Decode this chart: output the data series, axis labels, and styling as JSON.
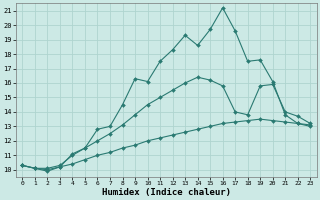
{
  "xlabel": "Humidex (Indice chaleur)",
  "xlim": [
    -0.5,
    23.5
  ],
  "ylim": [
    9.5,
    21.5
  ],
  "xticks": [
    0,
    1,
    2,
    3,
    4,
    5,
    6,
    7,
    8,
    9,
    10,
    11,
    12,
    13,
    14,
    15,
    16,
    17,
    18,
    19,
    20,
    21,
    22,
    23
  ],
  "yticks": [
    10,
    11,
    12,
    13,
    14,
    15,
    16,
    17,
    18,
    19,
    20,
    21
  ],
  "bg_color": "#cce9e5",
  "grid_color": "#afd4cf",
  "line_color": "#2a7a72",
  "line1_x": [
    0,
    1,
    2,
    3,
    4,
    5,
    6,
    7,
    8,
    9,
    10,
    11,
    12,
    13,
    14,
    15,
    16,
    17,
    18,
    19,
    20,
    21,
    22,
    23
  ],
  "line1_y": [
    10.3,
    10.1,
    9.9,
    10.2,
    11.1,
    11.5,
    12.8,
    13.0,
    14.5,
    16.3,
    16.1,
    17.5,
    18.3,
    19.3,
    18.6,
    19.7,
    21.2,
    19.6,
    17.5,
    17.6,
    16.1,
    13.8,
    13.2,
    13.0
  ],
  "line2_x": [
    0,
    1,
    2,
    3,
    4,
    5,
    6,
    7,
    8,
    9,
    10,
    11,
    12,
    13,
    14,
    15,
    16,
    17,
    18,
    19,
    20,
    21,
    22,
    23
  ],
  "line2_y": [
    10.3,
    10.1,
    10.1,
    10.3,
    11.0,
    11.5,
    12.0,
    12.5,
    13.1,
    13.8,
    14.5,
    15.0,
    15.5,
    16.0,
    16.4,
    16.2,
    15.8,
    14.0,
    13.8,
    15.8,
    15.9,
    14.0,
    13.7,
    13.2
  ],
  "line3_x": [
    0,
    1,
    2,
    3,
    4,
    5,
    6,
    7,
    8,
    9,
    10,
    11,
    12,
    13,
    14,
    15,
    16,
    17,
    18,
    19,
    20,
    21,
    22,
    23
  ],
  "line3_y": [
    10.3,
    10.1,
    10.0,
    10.2,
    10.4,
    10.7,
    11.0,
    11.2,
    11.5,
    11.7,
    12.0,
    12.2,
    12.4,
    12.6,
    12.8,
    13.0,
    13.2,
    13.3,
    13.4,
    13.5,
    13.4,
    13.3,
    13.2,
    13.1
  ]
}
